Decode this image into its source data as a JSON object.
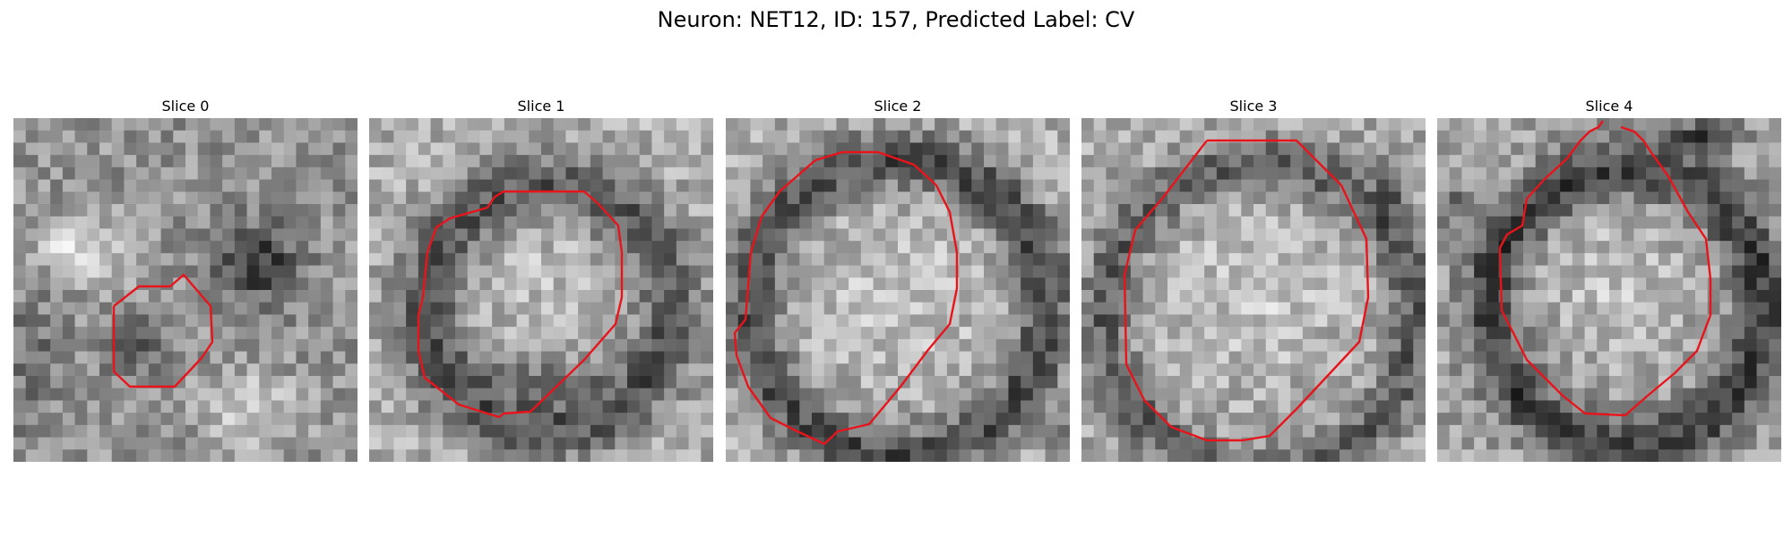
{
  "figure": {
    "title": "Neuron: NET12, ID: 157, Predicted Label: CV"
  },
  "colors": {
    "contour": "#e8141b",
    "background": "#ffffff"
  },
  "panels": [
    {
      "title": "Slice 0"
    },
    {
      "title": "Slice 1"
    },
    {
      "title": "Slice 2"
    },
    {
      "title": "Slice 3"
    },
    {
      "title": "Slice 4"
    }
  ]
}
